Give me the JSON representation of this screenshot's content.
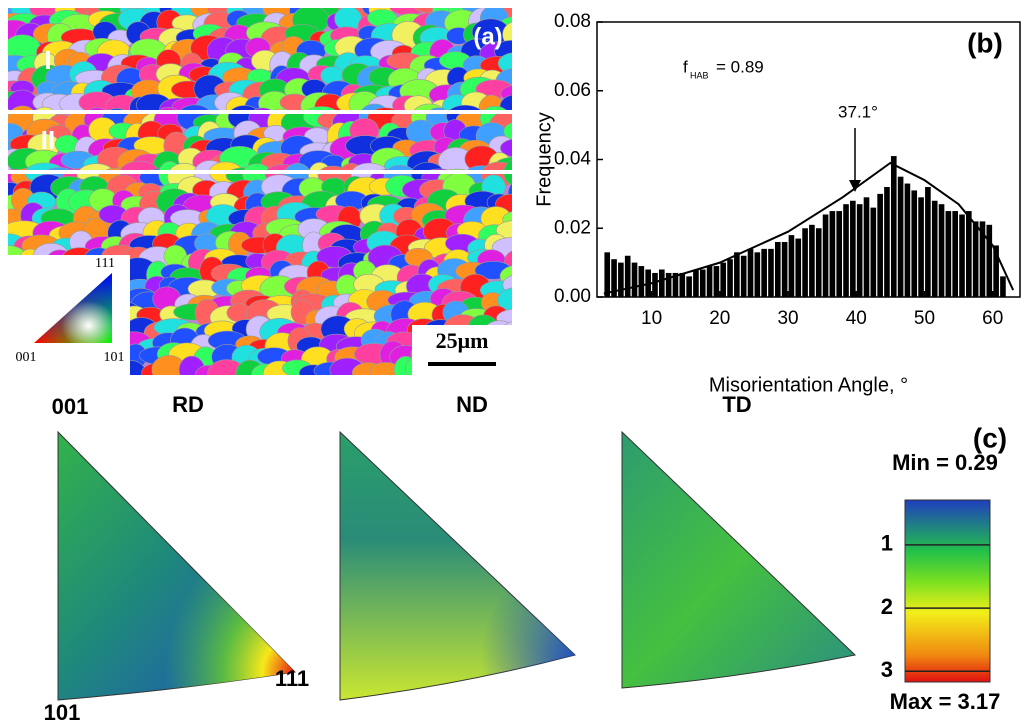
{
  "panel_a": {
    "label": "(a)",
    "region_1": "I",
    "region_2": "II",
    "key_111": "111",
    "key_001": "001",
    "key_101": "101",
    "scale_bar": "25μm"
  },
  "chart_data": {
    "type": "histogram",
    "panel_label": "(b)",
    "xlabel": "Misorientation Angle, °",
    "ylabel": "Frequency",
    "annotation_f": "f",
    "annotation_sub": "HAB",
    "annotation_value": "= 0.89",
    "annotation_peak": "37.1°",
    "bins": [
      3,
      4,
      5,
      6,
      7,
      8,
      9,
      10,
      11,
      12,
      13,
      14,
      15,
      16,
      17,
      18,
      19,
      20,
      21,
      22,
      23,
      24,
      25,
      26,
      27,
      28,
      29,
      30,
      31,
      32,
      33,
      34,
      35,
      36,
      37,
      38,
      39,
      40,
      41,
      42,
      43,
      44,
      45,
      46,
      47,
      48,
      49,
      50,
      51,
      52,
      53,
      54,
      55,
      56,
      57,
      58,
      59,
      60,
      61,
      62
    ],
    "values": [
      0.013,
      0.011,
      0.01,
      0.012,
      0.01,
      0.009,
      0.008,
      0.007,
      0.008,
      0.007,
      0.007,
      0.007,
      0.006,
      0.008,
      0.008,
      0.009,
      0.009,
      0.01,
      0.011,
      0.013,
      0.012,
      0.014,
      0.013,
      0.014,
      0.014,
      0.016,
      0.016,
      0.018,
      0.017,
      0.02,
      0.021,
      0.02,
      0.024,
      0.025,
      0.025,
      0.027,
      0.028,
      0.027,
      0.029,
      0.026,
      0.03,
      0.032,
      0.041,
      0.035,
      0.033,
      0.031,
      0.029,
      0.032,
      0.028,
      0.027,
      0.025,
      0.025,
      0.024,
      0.025,
      0.022,
      0.022,
      0.021,
      0.015,
      0.006
    ],
    "color": "#000000",
    "curve": {
      "x": [
        3,
        10,
        20,
        30,
        38,
        45,
        50,
        55,
        60,
        63
      ],
      "values": [
        0.001,
        0.004,
        0.01,
        0.019,
        0.029,
        0.039,
        0.034,
        0.027,
        0.015,
        0.002
      ],
      "color": "#000000"
    },
    "xlim": [
      2,
      64
    ],
    "xticks": [
      10,
      20,
      30,
      40,
      50,
      60
    ],
    "ylim": [
      0,
      0.08
    ],
    "yticks": [
      {
        "value": 0,
        "label": "0.00"
      },
      {
        "value": 0.02,
        "label": "0.02"
      },
      {
        "value": 0.04,
        "label": "0.04"
      },
      {
        "value": 0.06,
        "label": "0.06"
      },
      {
        "value": 0.08,
        "label": "0.08"
      }
    ]
  },
  "panel_c": {
    "label": "(c)",
    "pole_001": "001",
    "pole_101": "101",
    "pole_111": "111",
    "directions": [
      "RD",
      "ND",
      "TD"
    ],
    "min_label": "Min = 0.29",
    "max_label": "Max = 3.17",
    "clim": [
      0.29,
      3.17
    ],
    "cticks": [
      1,
      2,
      3
    ]
  }
}
